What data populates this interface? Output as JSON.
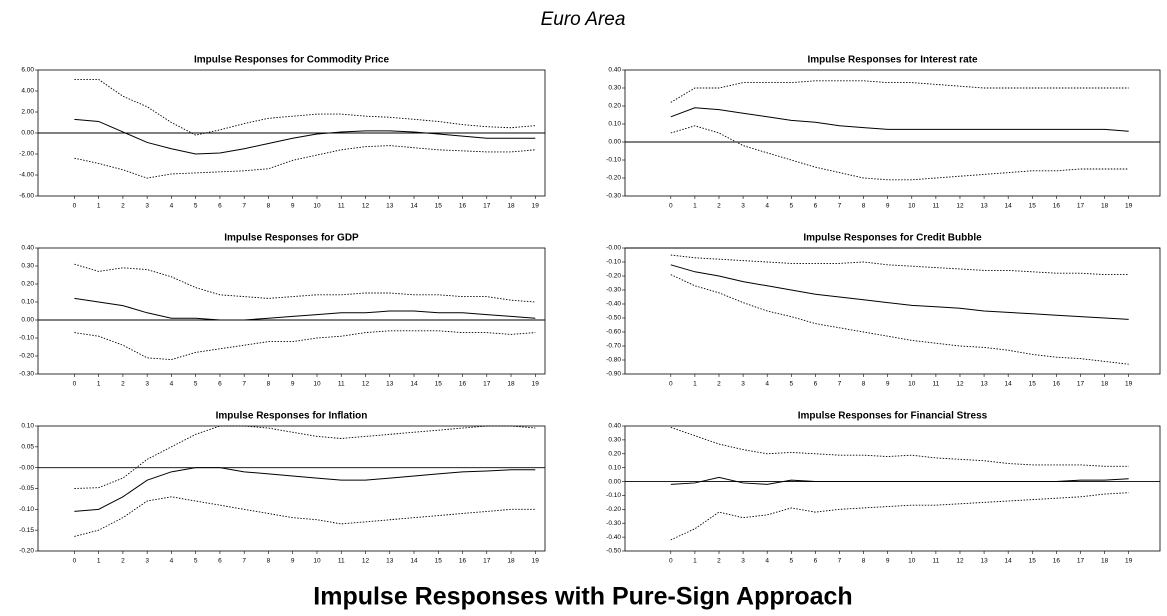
{
  "title": "Euro Area",
  "caption": "Impulse Responses with Pure-Sign Approach",
  "chart_data": [
    {
      "type": "line",
      "title": "Impulse Responses for Commodity Price",
      "x": [
        0,
        1,
        2,
        3,
        4,
        5,
        6,
        7,
        8,
        9,
        10,
        11,
        12,
        13,
        14,
        15,
        16,
        17,
        18,
        19
      ],
      "xlim": [
        -1.5,
        19.4
      ],
      "xticks": [
        0,
        1,
        2,
        3,
        4,
        5,
        6,
        7,
        8,
        9,
        10,
        11,
        12,
        13,
        14,
        15,
        16,
        17,
        18,
        19
      ],
      "ylim": [
        -6,
        6
      ],
      "yticks": [
        {
          "value": -6,
          "label": "-6.00"
        },
        {
          "value": -4,
          "label": "-4.00"
        },
        {
          "value": -2,
          "label": "-2.00"
        },
        {
          "value": 0,
          "label": "0.00"
        },
        {
          "value": 2,
          "label": "2.00"
        },
        {
          "value": 4,
          "label": "4.00"
        },
        {
          "value": 6,
          "label": "6.00"
        }
      ],
      "series": [
        {
          "color": "#000000",
          "dash": "dotted",
          "values": [
            5.1,
            5.1,
            3.5,
            2.5,
            1.0,
            -0.2,
            0.3,
            0.9,
            1.4,
            1.6,
            1.8,
            1.8,
            1.6,
            1.5,
            1.3,
            1.1,
            0.8,
            0.6,
            0.5,
            0.7
          ]
        },
        {
          "color": "#000000",
          "dash": "solid",
          "values": [
            1.3,
            1.1,
            0.1,
            -0.9,
            -1.5,
            -2.0,
            -1.9,
            -1.5,
            -1.0,
            -0.5,
            -0.1,
            0.1,
            0.2,
            0.2,
            0.1,
            -0.1,
            -0.3,
            -0.5,
            -0.5,
            -0.5
          ]
        },
        {
          "color": "#000000",
          "dash": "dotted",
          "values": [
            -2.4,
            -2.9,
            -3.5,
            -4.3,
            -3.9,
            -3.8,
            -3.7,
            -3.6,
            -3.4,
            -2.6,
            -2.1,
            -1.6,
            -1.3,
            -1.2,
            -1.4,
            -1.6,
            -1.7,
            -1.8,
            -1.8,
            -1.6
          ]
        }
      ]
    },
    {
      "type": "line",
      "title": "Impulse Responses for Interest rate",
      "x": [
        0,
        1,
        2,
        3,
        4,
        5,
        6,
        7,
        8,
        9,
        10,
        11,
        12,
        13,
        14,
        15,
        16,
        17,
        18,
        19
      ],
      "xlim": [
        -1.9,
        20.3
      ],
      "xticks": [
        0,
        1,
        2,
        3,
        4,
        5,
        6,
        7,
        8,
        9,
        10,
        11,
        12,
        13,
        14,
        15,
        16,
        17,
        18,
        19
      ],
      "ylim": [
        -0.3,
        0.4
      ],
      "yticks": [
        {
          "value": -0.3,
          "label": "-0.30"
        },
        {
          "value": -0.2,
          "label": "-0.20"
        },
        {
          "value": -0.1,
          "label": "-0.10"
        },
        {
          "value": 0,
          "label": "0.00"
        },
        {
          "value": 0.1,
          "label": "0.10"
        },
        {
          "value": 0.2,
          "label": "0.20"
        },
        {
          "value": 0.3,
          "label": "0.30"
        },
        {
          "value": 0.4,
          "label": "0.40"
        }
      ],
      "series": [
        {
          "color": "#000000",
          "dash": "dotted",
          "values": [
            0.22,
            0.3,
            0.3,
            0.33,
            0.33,
            0.33,
            0.34,
            0.34,
            0.34,
            0.33,
            0.33,
            0.32,
            0.31,
            0.3,
            0.3,
            0.3,
            0.3,
            0.3,
            0.3,
            0.3
          ]
        },
        {
          "color": "#000000",
          "dash": "solid",
          "values": [
            0.14,
            0.19,
            0.18,
            0.16,
            0.14,
            0.12,
            0.11,
            0.09,
            0.08,
            0.07,
            0.07,
            0.07,
            0.07,
            0.07,
            0.07,
            0.07,
            0.07,
            0.07,
            0.07,
            0.06
          ]
        },
        {
          "color": "#000000",
          "dash": "dotted",
          "values": [
            0.05,
            0.09,
            0.05,
            -0.02,
            -0.06,
            -0.1,
            -0.14,
            -0.17,
            -0.2,
            -0.21,
            -0.21,
            -0.2,
            -0.19,
            -0.18,
            -0.17,
            -0.16,
            -0.16,
            -0.15,
            -0.15,
            -0.15
          ]
        }
      ]
    },
    {
      "type": "line",
      "title": "Impulse Responses for GDP",
      "x": [
        0,
        1,
        2,
        3,
        4,
        5,
        6,
        7,
        8,
        9,
        10,
        11,
        12,
        13,
        14,
        15,
        16,
        17,
        18,
        19
      ],
      "xlim": [
        -1.5,
        19.4
      ],
      "xticks": [
        0,
        1,
        2,
        3,
        4,
        5,
        6,
        7,
        8,
        9,
        10,
        11,
        12,
        13,
        14,
        15,
        16,
        17,
        18,
        19
      ],
      "ylim": [
        -0.3,
        0.4
      ],
      "yticks": [
        {
          "value": -0.3,
          "label": "-0.30"
        },
        {
          "value": -0.2,
          "label": "-0.20"
        },
        {
          "value": -0.1,
          "label": "-0.10"
        },
        {
          "value": 0,
          "label": "0.00"
        },
        {
          "value": 0.1,
          "label": "0.10"
        },
        {
          "value": 0.2,
          "label": "0.20"
        },
        {
          "value": 0.3,
          "label": "0.30"
        },
        {
          "value": 0.4,
          "label": "0.40"
        }
      ],
      "series": [
        {
          "color": "#000000",
          "dash": "dotted",
          "values": [
            0.31,
            0.27,
            0.29,
            0.28,
            0.24,
            0.18,
            0.14,
            0.13,
            0.12,
            0.13,
            0.14,
            0.14,
            0.15,
            0.15,
            0.14,
            0.14,
            0.13,
            0.13,
            0.11,
            0.1
          ]
        },
        {
          "color": "#000000",
          "dash": "solid",
          "values": [
            0.12,
            0.1,
            0.08,
            0.04,
            0.01,
            0.01,
            0.0,
            0.0,
            0.01,
            0.02,
            0.03,
            0.04,
            0.04,
            0.05,
            0.05,
            0.04,
            0.04,
            0.03,
            0.02,
            0.01
          ]
        },
        {
          "color": "#000000",
          "dash": "dotted",
          "values": [
            -0.07,
            -0.09,
            -0.14,
            -0.21,
            -0.22,
            -0.18,
            -0.16,
            -0.14,
            -0.12,
            -0.12,
            -0.1,
            -0.09,
            -0.07,
            -0.06,
            -0.06,
            -0.06,
            -0.07,
            -0.07,
            -0.08,
            -0.07
          ]
        }
      ]
    },
    {
      "type": "line",
      "title": "Impulse Responses for Credit Bubble",
      "x": [
        0,
        1,
        2,
        3,
        4,
        5,
        6,
        7,
        8,
        9,
        10,
        11,
        12,
        13,
        14,
        15,
        16,
        17,
        18,
        19
      ],
      "xlim": [
        -1.9,
        20.3
      ],
      "xticks": [
        0,
        1,
        2,
        3,
        4,
        5,
        6,
        7,
        8,
        9,
        10,
        11,
        12,
        13,
        14,
        15,
        16,
        17,
        18,
        19
      ],
      "ylim": [
        -0.9,
        0
      ],
      "yticks": [
        {
          "value": -0.9,
          "label": "-0.90"
        },
        {
          "value": -0.8,
          "label": "-0.80"
        },
        {
          "value": -0.7,
          "label": "-0.70"
        },
        {
          "value": -0.6,
          "label": "-0.60"
        },
        {
          "value": -0.5,
          "label": "-0.50"
        },
        {
          "value": -0.4,
          "label": "-0.40"
        },
        {
          "value": -0.3,
          "label": "-0.30"
        },
        {
          "value": -0.2,
          "label": "-0.20"
        },
        {
          "value": -0.1,
          "label": "-0.10"
        },
        {
          "value": 0,
          "label": "-0.00"
        }
      ],
      "series": [
        {
          "color": "#000000",
          "dash": "dotted",
          "values": [
            -0.05,
            -0.07,
            -0.08,
            -0.09,
            -0.1,
            -0.11,
            -0.11,
            -0.11,
            -0.1,
            -0.12,
            -0.13,
            -0.14,
            -0.15,
            -0.16,
            -0.16,
            -0.17,
            -0.18,
            -0.18,
            -0.19,
            -0.19
          ]
        },
        {
          "color": "#000000",
          "dash": "solid",
          "values": [
            -0.12,
            -0.17,
            -0.2,
            -0.24,
            -0.27,
            -0.3,
            -0.33,
            -0.35,
            -0.37,
            -0.39,
            -0.41,
            -0.42,
            -0.43,
            -0.45,
            -0.46,
            -0.47,
            -0.48,
            -0.49,
            -0.5,
            -0.51
          ]
        },
        {
          "color": "#000000",
          "dash": "dotted",
          "values": [
            -0.19,
            -0.27,
            -0.32,
            -0.39,
            -0.45,
            -0.49,
            -0.54,
            -0.57,
            -0.6,
            -0.63,
            -0.66,
            -0.68,
            -0.7,
            -0.71,
            -0.73,
            -0.76,
            -0.78,
            -0.79,
            -0.81,
            -0.83
          ]
        }
      ]
    },
    {
      "type": "line",
      "title": "Impulse Responses for Inflation",
      "x": [
        0,
        1,
        2,
        3,
        4,
        5,
        6,
        7,
        8,
        9,
        10,
        11,
        12,
        13,
        14,
        15,
        16,
        17,
        18,
        19
      ],
      "xlim": [
        -1.5,
        19.4
      ],
      "xticks": [
        0,
        1,
        2,
        3,
        4,
        5,
        6,
        7,
        8,
        9,
        10,
        11,
        12,
        13,
        14,
        15,
        16,
        17,
        18,
        19
      ],
      "ylim": [
        -0.2,
        0.1
      ],
      "yticks": [
        {
          "value": -0.2,
          "label": "-0.20"
        },
        {
          "value": -0.15,
          "label": "-0.15"
        },
        {
          "value": -0.1,
          "label": "-0.10"
        },
        {
          "value": -0.05,
          "label": "-0.05"
        },
        {
          "value": 0,
          "label": "-0.00"
        },
        {
          "value": 0.05,
          "label": "0.05"
        },
        {
          "value": 0.1,
          "label": "0.10"
        }
      ],
      "series": [
        {
          "color": "#000000",
          "dash": "dotted",
          "values": [
            -0.05,
            -0.048,
            -0.025,
            0.02,
            0.05,
            0.08,
            0.1,
            0.1,
            0.095,
            0.085,
            0.075,
            0.07,
            0.075,
            0.08,
            0.085,
            0.09,
            0.095,
            0.1,
            0.1,
            0.095
          ]
        },
        {
          "color": "#000000",
          "dash": "solid",
          "values": [
            -0.105,
            -0.1,
            -0.07,
            -0.03,
            -0.01,
            0,
            0,
            -0.01,
            -0.015,
            -0.02,
            -0.025,
            -0.03,
            -0.03,
            -0.025,
            -0.02,
            -0.015,
            -0.01,
            -0.008,
            -0.005,
            -0.005
          ]
        },
        {
          "color": "#000000",
          "dash": "dotted",
          "values": [
            -0.165,
            -0.15,
            -0.12,
            -0.08,
            -0.07,
            -0.08,
            -0.09,
            -0.1,
            -0.11,
            -0.12,
            -0.125,
            -0.135,
            -0.13,
            -0.125,
            -0.12,
            -0.115,
            -0.11,
            -0.105,
            -0.1,
            -0.1
          ]
        }
      ]
    },
    {
      "type": "line",
      "title": "Impulse Responses for Financial Stress",
      "x": [
        0,
        1,
        2,
        3,
        4,
        5,
        6,
        7,
        8,
        9,
        10,
        11,
        12,
        13,
        14,
        15,
        16,
        17,
        18,
        19
      ],
      "xlim": [
        -1.9,
        20.3
      ],
      "xticks": [
        0,
        1,
        2,
        3,
        4,
        5,
        6,
        7,
        8,
        9,
        10,
        11,
        12,
        13,
        14,
        15,
        16,
        17,
        18,
        19
      ],
      "ylim": [
        -0.5,
        0.4
      ],
      "yticks": [
        {
          "value": -0.5,
          "label": "-0.50"
        },
        {
          "value": -0.4,
          "label": "-0.40"
        },
        {
          "value": -0.3,
          "label": "-0.30"
        },
        {
          "value": -0.2,
          "label": "-0.20"
        },
        {
          "value": -0.1,
          "label": "-0.10"
        },
        {
          "value": 0,
          "label": "0.00"
        },
        {
          "value": 0.1,
          "label": "0.10"
        },
        {
          "value": 0.2,
          "label": "0.20"
        },
        {
          "value": 0.3,
          "label": "0.30"
        },
        {
          "value": 0.4,
          "label": "0.40"
        }
      ],
      "series": [
        {
          "color": "#000000",
          "dash": "dotted",
          "values": [
            0.39,
            0.33,
            0.27,
            0.23,
            0.2,
            0.21,
            0.2,
            0.19,
            0.19,
            0.18,
            0.19,
            0.17,
            0.16,
            0.15,
            0.13,
            0.12,
            0.12,
            0.12,
            0.11,
            0.11
          ]
        },
        {
          "color": "#000000",
          "dash": "solid",
          "values": [
            -0.02,
            -0.01,
            0.03,
            -0.01,
            -0.02,
            0.01,
            0,
            0,
            0,
            0,
            0,
            0,
            0,
            0,
            0,
            0,
            0,
            0.01,
            0.01,
            0.02
          ]
        },
        {
          "color": "#000000",
          "dash": "dotted",
          "values": [
            -0.42,
            -0.34,
            -0.22,
            -0.26,
            -0.24,
            -0.19,
            -0.22,
            -0.2,
            -0.19,
            -0.18,
            -0.17,
            -0.17,
            -0.16,
            -0.15,
            -0.14,
            -0.13,
            -0.12,
            -0.11,
            -0.09,
            -0.08
          ]
        }
      ]
    }
  ]
}
